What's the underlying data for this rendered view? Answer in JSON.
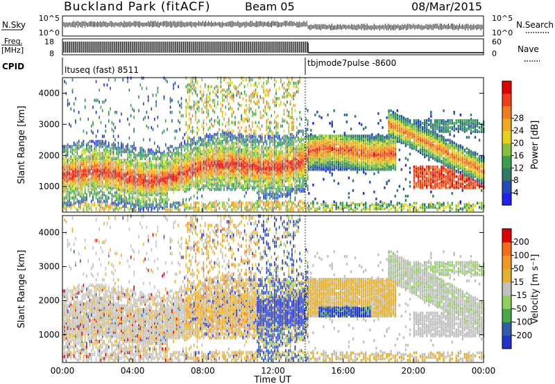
{
  "header": {
    "site": "Buckland Park (fitACF)",
    "beam": "Beam 05",
    "date": "08/Mar/2015"
  },
  "noise_panel": {
    "left_label": "N.Sky",
    "right_label": "N.Search",
    "left_ticks": [
      "10^5",
      "10^0"
    ],
    "right_ticks": [
      "10^5",
      "10^0"
    ]
  },
  "freq_panel": {
    "left_label_1": "Freq.",
    "left_label_2": "[MHz]",
    "right_label": "Nave",
    "left_ticks": [
      "18",
      "8"
    ],
    "right_ticks": [
      "60",
      "0"
    ]
  },
  "cpid": {
    "label": "CPID",
    "modes": [
      {
        "name": "ltuseq (fast) 8511",
        "start": "00:00",
        "end": "14:00"
      },
      {
        "name": "tbjmode7pulse -8600",
        "start": "14:00",
        "end": "24:00"
      }
    ]
  },
  "chart_data": [
    {
      "type": "heatmap",
      "name": "power",
      "ylabel": "Slant Range [km]",
      "y_ticks": [
        "1000",
        "2000",
        "3000",
        "4000"
      ],
      "ylim": [
        180,
        4500
      ],
      "colorbar": {
        "label": "Power [dB]",
        "ticks": [
          "28",
          "24",
          "20",
          "16",
          "12",
          "8",
          "4"
        ],
        "colors": [
          "#2222ee",
          "#224ab8",
          "#2e7a66",
          "#3aa04e",
          "#86c03e",
          "#e6d21a",
          "#f0a820",
          "#f47a1e",
          "#f23e16",
          "#e00000"
        ]
      }
    },
    {
      "type": "heatmap",
      "name": "velocity",
      "ylabel": "Slant Range [km]",
      "y_ticks": [
        "1000",
        "2000",
        "3000",
        "4000"
      ],
      "ylim": [
        180,
        4500
      ],
      "colorbar": {
        "label": "Velocity [m s⁻¹]",
        "ticks": [
          "200",
          "100",
          "50",
          "15",
          "-15",
          "-50",
          "-100",
          "-200"
        ],
        "colors": [
          "#2233cc",
          "#2e5ea8",
          "#48a848",
          "#8ed05a",
          "#c0c0c0",
          "#e4b02e",
          "#f09820",
          "#f46a16",
          "#e00000"
        ]
      }
    }
  ],
  "x_axis": {
    "label": "Time UT",
    "ticks": [
      "00:00",
      "04:00",
      "08:00",
      "12:00",
      "16:00",
      "20:00",
      "00:00"
    ]
  }
}
